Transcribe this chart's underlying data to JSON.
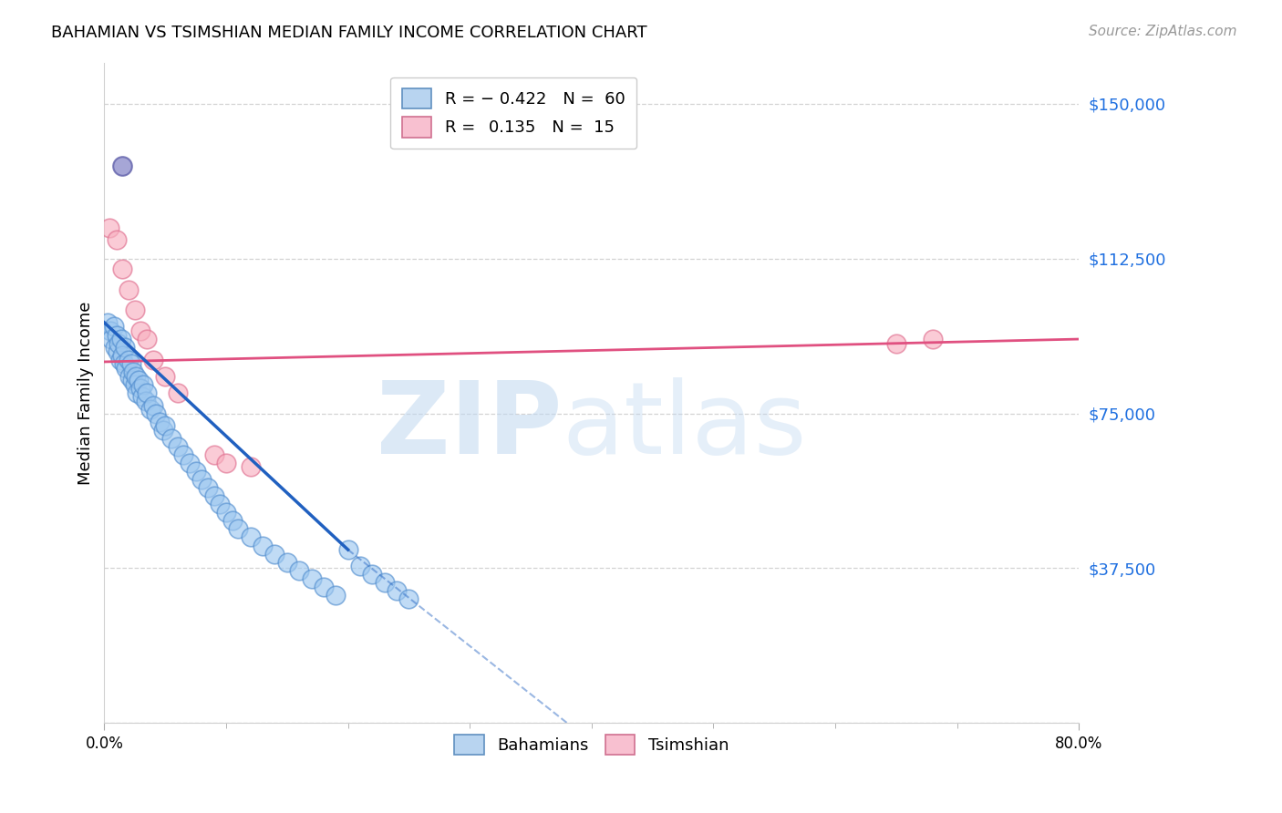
{
  "title": "BAHAMIAN VS TSIMSHIAN MEDIAN FAMILY INCOME CORRELATION CHART",
  "source": "Source: ZipAtlas.com",
  "ylabel": "Median Family Income",
  "yticks": [
    0,
    37500,
    75000,
    112500,
    150000
  ],
  "ytick_labels": [
    "",
    "$37,500",
    "$75,000",
    "$112,500",
    "$150,000"
  ],
  "xmin": 0.0,
  "xmax": 80.0,
  "ymin": 0,
  "ymax": 160000,
  "bahamian_color": "#9ec8f0",
  "bahamian_edge_color": "#5590d0",
  "tsimshian_color": "#f8b0c0",
  "tsimshian_edge_color": "#e07090",
  "bahamian_line_color": "#2060c0",
  "tsimshian_line_color": "#e05080",
  "background_color": "#ffffff",
  "grid_color": "#c8c8c8",
  "bahamian_x": [
    0.3,
    0.5,
    0.6,
    0.8,
    0.9,
    1.0,
    1.1,
    1.2,
    1.3,
    1.4,
    1.5,
    1.6,
    1.7,
    1.8,
    2.0,
    2.1,
    2.2,
    2.3,
    2.4,
    2.5,
    2.6,
    2.7,
    2.8,
    3.0,
    3.1,
    3.2,
    3.4,
    3.5,
    3.8,
    4.0,
    4.2,
    4.5,
    4.8,
    5.0,
    5.5,
    6.0,
    6.5,
    7.0,
    7.5,
    8.0,
    8.5,
    9.0,
    9.5,
    10.0,
    10.5,
    11.0,
    12.0,
    13.0,
    14.0,
    15.0,
    16.0,
    17.0,
    18.0,
    19.0,
    20.0,
    21.0,
    22.0,
    23.0,
    24.0,
    25.0
  ],
  "bahamian_y": [
    97000,
    95000,
    93000,
    96000,
    91000,
    94000,
    90000,
    92000,
    88000,
    93000,
    89000,
    87000,
    91000,
    86000,
    88000,
    84000,
    87000,
    83000,
    85000,
    82000,
    84000,
    80000,
    83000,
    81000,
    79000,
    82000,
    78000,
    80000,
    76000,
    77000,
    75000,
    73000,
    71000,
    72000,
    69000,
    67000,
    65000,
    63000,
    61000,
    59000,
    57000,
    55000,
    53000,
    51000,
    49000,
    47000,
    45000,
    43000,
    41000,
    39000,
    37000,
    35000,
    33000,
    31000,
    42000,
    38000,
    36000,
    34000,
    32000,
    30000
  ],
  "tsimshian_x": [
    0.4,
    1.0,
    1.5,
    2.0,
    2.5,
    3.0,
    3.5,
    4.0,
    5.0,
    6.0,
    9.0,
    10.0,
    12.0,
    65.0,
    68.0
  ],
  "tsimshian_y": [
    120000,
    117000,
    110000,
    105000,
    100000,
    95000,
    93000,
    88000,
    84000,
    80000,
    65000,
    63000,
    62000,
    92000,
    93000
  ],
  "purple_x": [
    1.5
  ],
  "purple_y": [
    135000
  ],
  "bahamian_line_x0": 0.0,
  "bahamian_line_y0": 97000,
  "bahamian_line_x1": 20.0,
  "bahamian_line_y1": 42000,
  "bahamian_dash_x0": 20.0,
  "bahamian_dash_y0": 42000,
  "bahamian_dash_x1": 38.0,
  "bahamian_dash_y1": 0,
  "tsimshian_line_x0": 0.0,
  "tsimshian_line_y0": 87500,
  "tsimshian_line_x1": 80.0,
  "tsimshian_line_y1": 93000,
  "bahamian_R": -0.422,
  "tsimshian_R": 0.135,
  "bahamian_N": 60,
  "tsimshian_N": 15
}
